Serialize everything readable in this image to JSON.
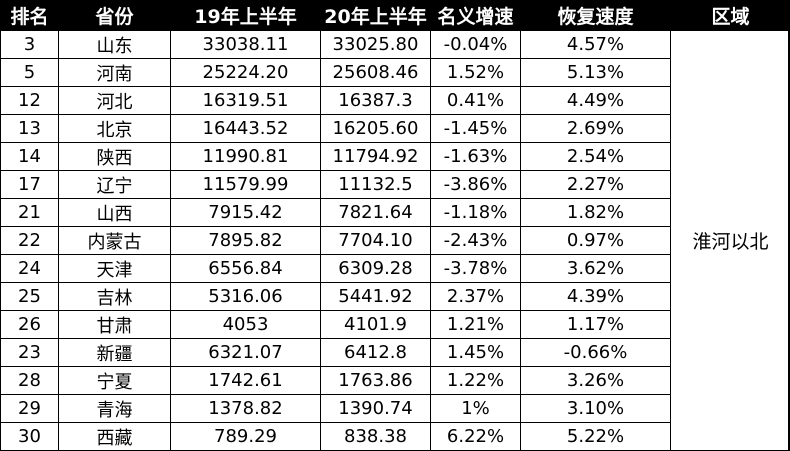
{
  "table": {
    "headers": [
      "排名",
      "省份",
      "19年上半年",
      "20年上半年",
      "名义增速",
      "恢复速度",
      "区域"
    ],
    "rows": [
      [
        "3",
        "山东",
        "33038.11",
        "33025.80",
        "-0.04%",
        "4.57%"
      ],
      [
        "5",
        "河南",
        "25224.20",
        "25608.46",
        "1.52%",
        "5.13%"
      ],
      [
        "12",
        "河北",
        "16319.51",
        "16387.3",
        "0.41%",
        "4.49%"
      ],
      [
        "13",
        "北京",
        "16443.52",
        "16205.60",
        "-1.45%",
        "2.69%"
      ],
      [
        "14",
        "陕西",
        "11990.81",
        "11794.92",
        "-1.63%",
        "2.54%"
      ],
      [
        "17",
        "辽宁",
        "11579.99",
        "11132.5",
        "-3.86%",
        "2.27%"
      ],
      [
        "21",
        "山西",
        "7915.42",
        "7821.64",
        "-1.18%",
        "1.82%"
      ],
      [
        "22",
        "内蒙古",
        "7895.82",
        "7704.10",
        "-2.43%",
        "0.97%"
      ],
      [
        "24",
        "天津",
        "6556.84",
        "6309.28",
        "-3.78%",
        "3.62%"
      ],
      [
        "25",
        "吉林",
        "5316.06",
        "5441.92",
        "2.37%",
        "4.39%"
      ],
      [
        "26",
        "甘肃",
        "4053",
        "4101.9",
        "1.21%",
        "1.17%"
      ],
      [
        "23",
        "新疆",
        "6321.07",
        "6412.8",
        "1.45%",
        "-0.66%"
      ],
      [
        "28",
        "宁夏",
        "1742.61",
        "1763.86",
        "1.22%",
        "3.26%"
      ],
      [
        "29",
        "青海",
        "1378.82",
        "1390.74",
        "1%",
        "3.10%"
      ],
      [
        "30",
        "西藏",
        "789.29",
        "838.38",
        "6.22%",
        "5.22%"
      ]
    ],
    "region": "淮河以北"
  }
}
